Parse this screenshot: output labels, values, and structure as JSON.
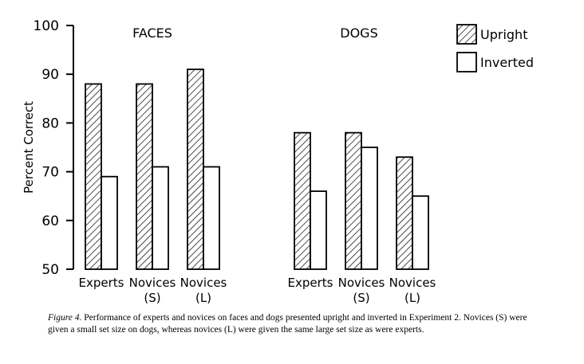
{
  "chart_data": {
    "type": "bar",
    "ylabel": "Percent Correct",
    "ylim": [
      50,
      100
    ],
    "yticks": [
      50,
      60,
      70,
      80,
      90,
      100
    ],
    "groups": [
      {
        "label": "FACES",
        "categories": [
          [
            "Experts"
          ],
          [
            "Novices",
            "(S)"
          ],
          [
            "Novices",
            "(L)"
          ]
        ]
      },
      {
        "label": "DOGS",
        "categories": [
          [
            "Experts"
          ],
          [
            "Novices",
            "(S)"
          ],
          [
            "Novices",
            "(L)"
          ]
        ]
      }
    ],
    "series": [
      {
        "name": "Upright",
        "pattern": "diagonal-hatch",
        "values": [
          88,
          88,
          91,
          78,
          78,
          73
        ]
      },
      {
        "name": "Inverted",
        "pattern": "none",
        "values": [
          69,
          71,
          71,
          66,
          75,
          65
        ]
      }
    ],
    "legend_position": "top-right",
    "grid": false
  },
  "caption": {
    "figure_label": "Figure 4.",
    "text": "Performance of experts and novices on faces and dogs presented upright and inverted in Experiment 2. Novices (S) were given a small set size on dogs, whereas novices (L) were given the same large set size as were experts."
  }
}
